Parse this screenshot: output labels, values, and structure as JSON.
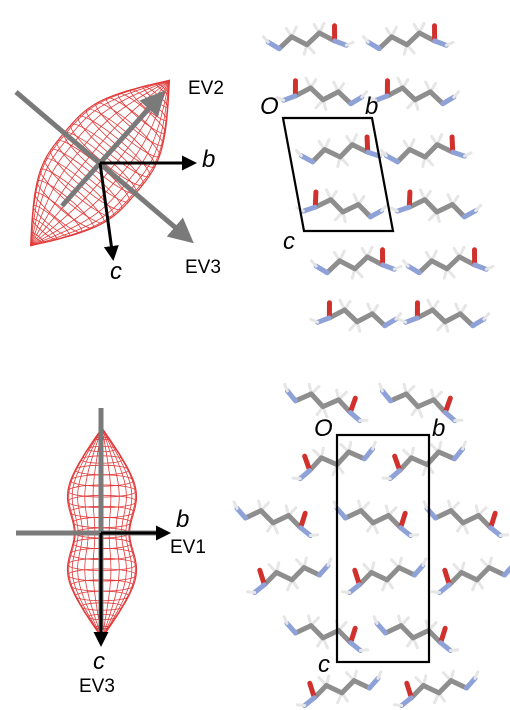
{
  "colors": {
    "wireframe": "#e23a3a",
    "eigen_axis": "#7a7a7a",
    "cell_axis": "#000000",
    "carbon": "#8e8e8e",
    "hydrogen": "#e6e6e6",
    "oxygen": "#d0312d",
    "nitrogen": "#8fa2d8",
    "cell_edge": "#000000"
  },
  "top_panel": {
    "ellipsoid_labels": {
      "ev2": "EV2",
      "ev3": "EV3",
      "b": "b",
      "c": "c"
    },
    "cell_labels": {
      "origin": "O",
      "b": "b",
      "c": "c"
    }
  },
  "bottom_panel": {
    "ellipsoid_labels": {
      "b": "b",
      "ev1": "EV1",
      "c": "c",
      "ev3": "EV3"
    },
    "cell_labels": {
      "origin": "O",
      "b": "b",
      "c": "c"
    }
  }
}
